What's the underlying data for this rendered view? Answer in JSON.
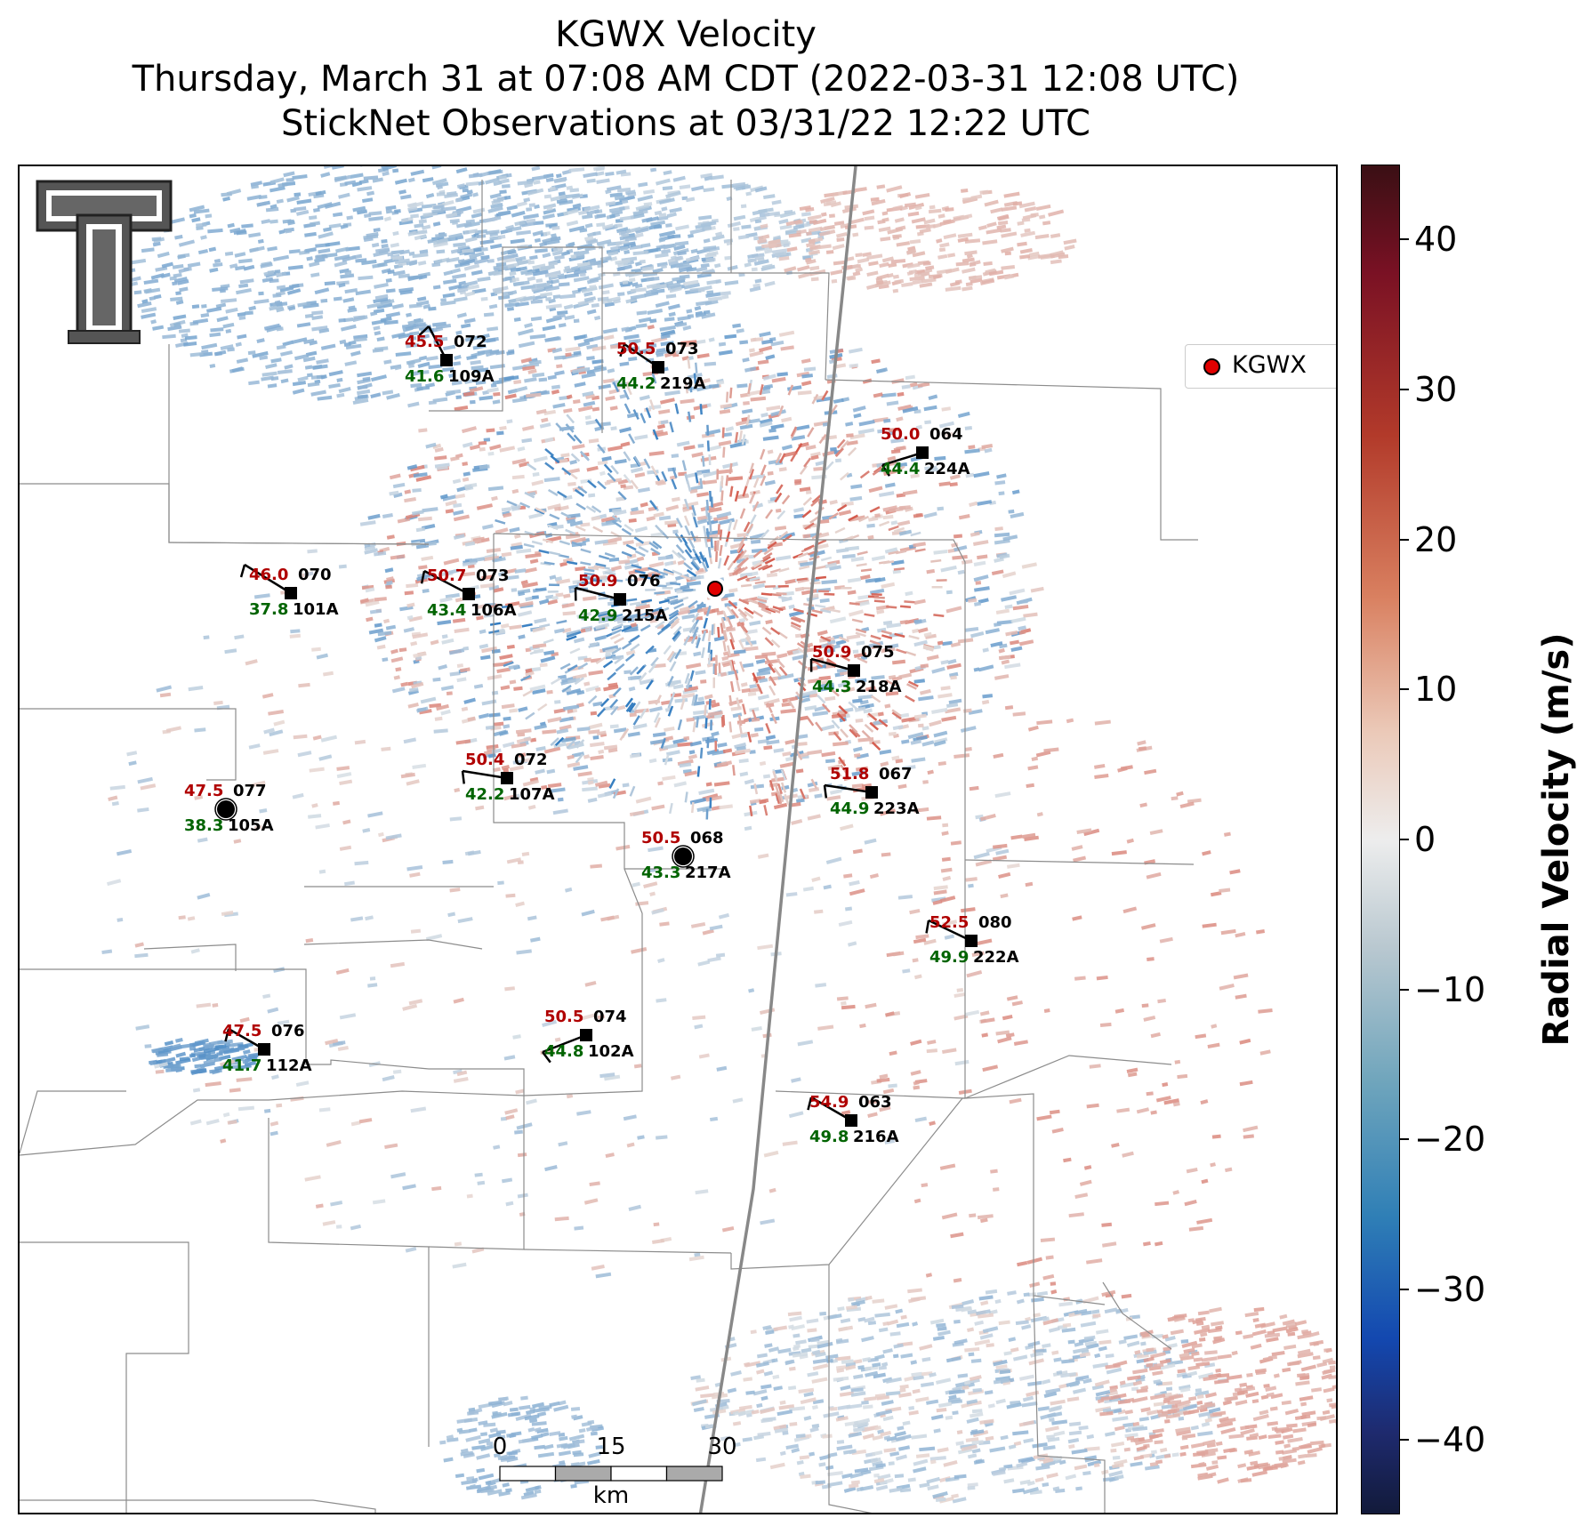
{
  "title": {
    "line1": "KGWX Velocity",
    "line2": "Thursday, March 31 at 07:08 AM CDT (2022-03-31 12:08 UTC)",
    "line3": "StickNet Observations at 03/31/22 12:22 UTC"
  },
  "legend": {
    "label": "KGWX",
    "marker_color": "#e10000"
  },
  "colorbar": {
    "label": "Radial Velocity (m/s)",
    "range": [
      -45,
      45
    ],
    "ticks": [
      "40",
      "30",
      "20",
      "10",
      "0",
      "−10",
      "−20",
      "−30",
      "−40"
    ]
  },
  "scale_bar": {
    "labels": [
      "0",
      "15",
      "30"
    ],
    "unit": "km"
  },
  "colors": {
    "red_value": "#b00000",
    "green_value": "#006400",
    "radar": "#e10000"
  },
  "stations": [
    {
      "id": "109A",
      "red": "45.5",
      "dir": "072",
      "green": "41.6"
    },
    {
      "id": "219A",
      "red": "50.5",
      "dir": "073",
      "green": "44.2"
    },
    {
      "id": "224A",
      "red": "50.0",
      "dir": "064",
      "green": "44.4"
    },
    {
      "id": "101A",
      "red": "46.0",
      "dir": "070",
      "green": "37.8"
    },
    {
      "id": "106A",
      "red": "50.7",
      "dir": "073",
      "green": "43.4"
    },
    {
      "id": "215A",
      "red": "50.9",
      "dir": "076",
      "green": "42.9"
    },
    {
      "id": "218A",
      "red": "50.9",
      "dir": "075",
      "green": "44.3"
    },
    {
      "id": "107A",
      "red": "50.4",
      "dir": "072",
      "green": "42.2"
    },
    {
      "id": "223A",
      "red": "51.8",
      "dir": "067",
      "green": "44.9"
    },
    {
      "id": "105A",
      "red": "47.5",
      "dir": "077",
      "green": "38.3"
    },
    {
      "id": "217A",
      "red": "50.5",
      "dir": "068",
      "green": "43.3"
    },
    {
      "id": "222A",
      "red": "52.5",
      "dir": "080",
      "green": "49.9"
    },
    {
      "id": "102A",
      "red": "50.5",
      "dir": "074",
      "green": "44.8"
    },
    {
      "id": "112A",
      "red": "47.5",
      "dir": "076",
      "green": "41.7"
    },
    {
      "id": "216A",
      "red": "54.9",
      "dir": "063",
      "green": "49.8"
    }
  ]
}
